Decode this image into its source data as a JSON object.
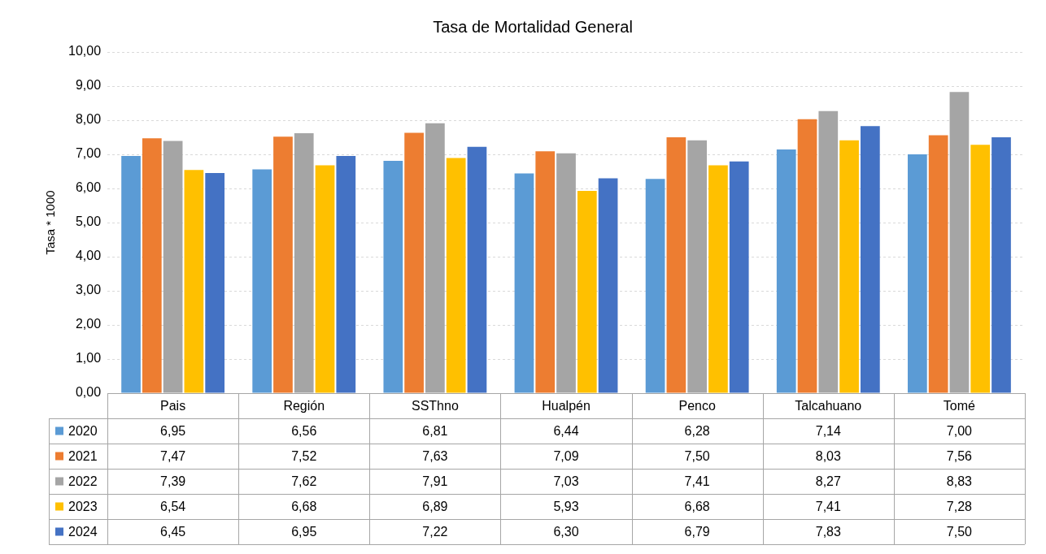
{
  "chart_data": {
    "type": "bar",
    "title": "Tasa de Mortalidad General",
    "ylabel": "Tasa * 1000",
    "categories": [
      "Pais",
      "Región",
      "SSThno",
      "Hualpén",
      "Penco",
      "Talcahuano",
      "Tomé"
    ],
    "ylim": [
      0,
      10
    ],
    "yticks": [
      {
        "value": 0,
        "label": "0,00"
      },
      {
        "value": 1,
        "label": "1,00"
      },
      {
        "value": 2,
        "label": "2,00"
      },
      {
        "value": 3,
        "label": "3,00"
      },
      {
        "value": 4,
        "label": "4,00"
      },
      {
        "value": 5,
        "label": "5,00"
      },
      {
        "value": 6,
        "label": "6,00"
      },
      {
        "value": 7,
        "label": "7,00"
      },
      {
        "value": 8,
        "label": "8,00"
      },
      {
        "value": 9,
        "label": "9,00"
      },
      {
        "value": 10,
        "label": "10,00"
      }
    ],
    "grid": "y",
    "legend": "bottom",
    "series": [
      {
        "name": "2020",
        "color": "#5b9bd5",
        "values": [
          6.95,
          6.56,
          6.81,
          6.44,
          6.28,
          7.14,
          7.0
        ],
        "value_labels": [
          "6,95",
          "6,56",
          "6,81",
          "6,44",
          "6,28",
          "7,14",
          "7,00"
        ]
      },
      {
        "name": "2021",
        "color": "#ed7d31",
        "values": [
          7.47,
          7.52,
          7.63,
          7.09,
          7.5,
          8.03,
          7.56
        ],
        "value_labels": [
          "7,47",
          "7,52",
          "7,63",
          "7,09",
          "7,50",
          "8,03",
          "7,56"
        ]
      },
      {
        "name": "2022",
        "color": "#a5a5a5",
        "values": [
          7.39,
          7.62,
          7.91,
          7.03,
          7.41,
          8.27,
          8.83
        ],
        "value_labels": [
          "7,39",
          "7,62",
          "7,91",
          "7,03",
          "7,41",
          "8,27",
          "8,83"
        ]
      },
      {
        "name": "2023",
        "color": "#ffc000",
        "values": [
          6.54,
          6.68,
          6.89,
          5.93,
          6.68,
          7.41,
          7.28
        ],
        "value_labels": [
          "6,54",
          "6,68",
          "6,89",
          "5,93",
          "6,68",
          "7,41",
          "7,28"
        ]
      },
      {
        "name": "2024",
        "color": "#4472c4",
        "values": [
          6.45,
          6.95,
          7.22,
          6.3,
          6.79,
          7.83,
          7.5
        ],
        "value_labels": [
          "6,45",
          "6,95",
          "7,22",
          "6,30",
          "6,79",
          "7,83",
          "7,50"
        ]
      }
    ]
  }
}
